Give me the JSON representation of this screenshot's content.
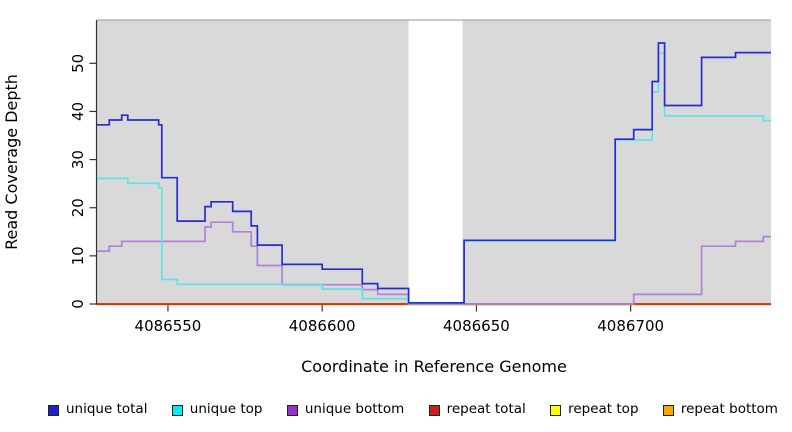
{
  "chart_data": {
    "type": "line",
    "subtype": "step-coverage-plot",
    "title": "",
    "xlabel": "Coordinate in Reference Genome",
    "ylabel": "Read Coverage Depth",
    "xlim": [
      4086527,
      4086745.5
    ],
    "ylim": [
      0,
      59
    ],
    "x_ticks": [
      4086550,
      4086600,
      4086650,
      4086700
    ],
    "y_ticks": [
      0,
      10,
      20,
      30,
      40,
      50
    ],
    "grid": false,
    "plot_bg_color": "#D9D9D9",
    "masked_region": {
      "x_start": 4086628,
      "x_end": 4086645.5,
      "color": "#FFFFFF"
    },
    "legend_position": "bottom",
    "series": [
      {
        "name": "unique total",
        "color": "#2020D0",
        "line_color": "#2A2AD5",
        "steps": [
          [
            4086527,
            37
          ],
          [
            4086531,
            38
          ],
          [
            4086535,
            39
          ],
          [
            4086537,
            38
          ],
          [
            4086547,
            37
          ],
          [
            4086548,
            26
          ],
          [
            4086553,
            17
          ],
          [
            4086562,
            20
          ],
          [
            4086564,
            21
          ],
          [
            4086571,
            19
          ],
          [
            4086577,
            16
          ],
          [
            4086579,
            12
          ],
          [
            4086587,
            8
          ],
          [
            4086600,
            7
          ],
          [
            4086613,
            4
          ],
          [
            4086618,
            3
          ],
          [
            4086628,
            0
          ],
          [
            4086646,
            13
          ],
          [
            4086695,
            34
          ],
          [
            4086701,
            36
          ],
          [
            4086707,
            46
          ],
          [
            4086709,
            54
          ],
          [
            4086711,
            41
          ],
          [
            4086723,
            51
          ],
          [
            4086734,
            52
          ]
        ]
      },
      {
        "name": "unique top",
        "color": "#00EEEE",
        "line_color": "#5FE3E8",
        "steps": [
          [
            4086527,
            26
          ],
          [
            4086537,
            25
          ],
          [
            4086547,
            24
          ],
          [
            4086548,
            5
          ],
          [
            4086553,
            4
          ],
          [
            4086600,
            3
          ],
          [
            4086613,
            1
          ],
          [
            4086628,
            0
          ],
          [
            4086646,
            13
          ],
          [
            4086695,
            34
          ],
          [
            4086707,
            44
          ],
          [
            4086709,
            52
          ],
          [
            4086711,
            39
          ],
          [
            4086743,
            38
          ]
        ]
      },
      {
        "name": "unique bottom",
        "color": "#9932CC",
        "line_color": "#AF82D8",
        "steps": [
          [
            4086527,
            11
          ],
          [
            4086531,
            12
          ],
          [
            4086535,
            13
          ],
          [
            4086562,
            16
          ],
          [
            4086564,
            17
          ],
          [
            4086571,
            15
          ],
          [
            4086577,
            12
          ],
          [
            4086579,
            8
          ],
          [
            4086587,
            4
          ],
          [
            4086613,
            3
          ],
          [
            4086618,
            2
          ],
          [
            4086628,
            0
          ],
          [
            4086701,
            2
          ],
          [
            4086723,
            12
          ],
          [
            4086734,
            13
          ],
          [
            4086743,
            14
          ]
        ]
      },
      {
        "name": "repeat total",
        "color": "#CC2020",
        "line_color": "#CC2020",
        "steps": [
          [
            4086527,
            0
          ]
        ]
      },
      {
        "name": "repeat top",
        "color": "#FFFF00",
        "line_color": "#FFFF00",
        "steps": [
          [
            4086527,
            0
          ]
        ]
      },
      {
        "name": "repeat bottom",
        "color": "#FFA500",
        "line_color": "#FFA513",
        "steps": [
          [
            4086527,
            0
          ]
        ]
      }
    ]
  }
}
